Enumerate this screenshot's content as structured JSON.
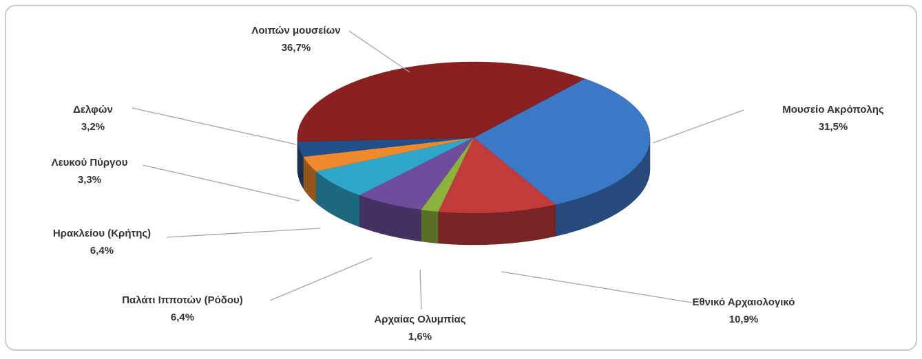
{
  "chart_data": {
    "type": "pie",
    "categories": [
      "Μουσείο Ακρόπολης",
      "Εθνικό Αρχαιολογικό",
      "Αρχαίας Ολυμπίας",
      "Παλάτι Ιπποτών (Ρόδου)",
      "Ηρακλείου (Κρήτης)",
      "Λευκού Πύργου",
      "Δελφών",
      "Λοιπών μουσείων"
    ],
    "values": [
      31.5,
      10.9,
      1.6,
      6.4,
      6.4,
      3.3,
      3.2,
      36.7
    ],
    "value_labels": [
      "31,5%",
      "10,9%",
      "1,6%",
      "6,4%",
      "6,4%",
      "3,3%",
      "3,2%",
      "36,7%"
    ],
    "colors": [
      "#3b78c6",
      "#c23a3a",
      "#8cb43c",
      "#6d4d9c",
      "#2ea7cb",
      "#ef8a2c",
      "#204f8b",
      "#8a2020"
    ]
  }
}
